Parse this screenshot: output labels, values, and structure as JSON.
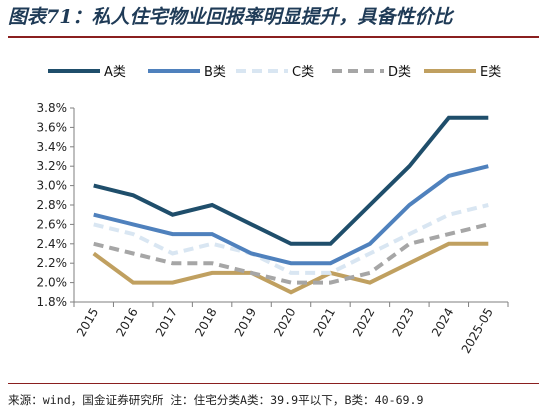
{
  "title": "图表71：私人住宅物业回报率明显提升，具备性价比",
  "source_note": "来源：wind，国金证券研究所 注：住宅分类A类：39.9平以下，B类：40-69.9",
  "chart_data": {
    "type": "line",
    "categories": [
      "2015",
      "2016",
      "2017",
      "2018",
      "2019",
      "2020",
      "2021",
      "2022",
      "2023",
      "2024",
      "2025-05"
    ],
    "ylim": [
      0.018,
      0.038
    ],
    "yticks": [
      0.018,
      0.02,
      0.022,
      0.024,
      0.026,
      0.028,
      0.03,
      0.032,
      0.034,
      0.036,
      0.038
    ],
    "ytick_labels": [
      "1.8%",
      "2.0%",
      "2.2%",
      "2.4%",
      "2.6%",
      "2.8%",
      "3.0%",
      "3.2%",
      "3.4%",
      "3.6%",
      "3.8%"
    ],
    "grid": false,
    "legend_position": "top",
    "series": [
      {
        "name": "A类",
        "color": "#1f4e6b",
        "style": "solid",
        "values": [
          0.03,
          0.029,
          0.027,
          0.028,
          0.026,
          0.024,
          0.024,
          0.028,
          0.032,
          0.037,
          0.037
        ]
      },
      {
        "name": "B类",
        "color": "#4f81bd",
        "style": "solid",
        "values": [
          0.027,
          0.026,
          0.025,
          0.025,
          0.023,
          0.022,
          0.022,
          0.024,
          0.028,
          0.031,
          0.032
        ]
      },
      {
        "name": "C类",
        "color": "#d9e6f2",
        "style": "dashed",
        "values": [
          0.026,
          0.025,
          0.023,
          0.024,
          0.023,
          0.021,
          0.021,
          0.023,
          0.025,
          0.027,
          0.028
        ]
      },
      {
        "name": "D类",
        "color": "#a6a6a6",
        "style": "dashed",
        "values": [
          0.024,
          0.023,
          0.022,
          0.022,
          0.021,
          0.02,
          0.02,
          0.021,
          0.024,
          0.025,
          0.026
        ]
      },
      {
        "name": "E类",
        "color": "#c0a060",
        "style": "solid",
        "values": [
          0.023,
          0.02,
          0.02,
          0.021,
          0.021,
          0.019,
          0.021,
          0.02,
          0.022,
          0.024,
          0.024
        ]
      }
    ]
  }
}
